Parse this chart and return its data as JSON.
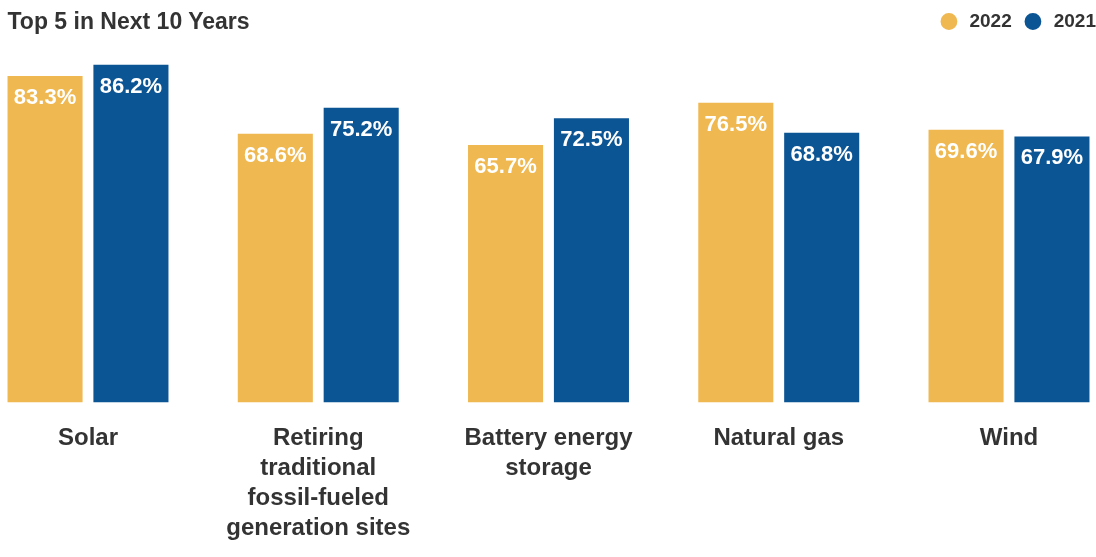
{
  "chart_data": {
    "type": "bar",
    "title": "Top 5 in Next 10 Years",
    "categories": [
      "Solar",
      "Retiring traditional fossil-fueled generation sites",
      "Battery energy storage",
      "Natural gas",
      "Wind"
    ],
    "series": [
      {
        "name": "2022",
        "color": "#efb851",
        "values": [
          83.3,
          68.6,
          65.7,
          76.5,
          69.6
        ],
        "value_labels": [
          "83.3%",
          "68.6%",
          "65.7%",
          "76.5%",
          "69.6%"
        ]
      },
      {
        "name": "2021",
        "color": "#0b5595",
        "values": [
          86.2,
          75.2,
          72.5,
          68.8,
          67.9
        ],
        "value_labels": [
          "86.2%",
          "75.2%",
          "72.5%",
          "68.8%",
          "67.9%"
        ]
      }
    ],
    "grid": false,
    "legend": "top right"
  }
}
